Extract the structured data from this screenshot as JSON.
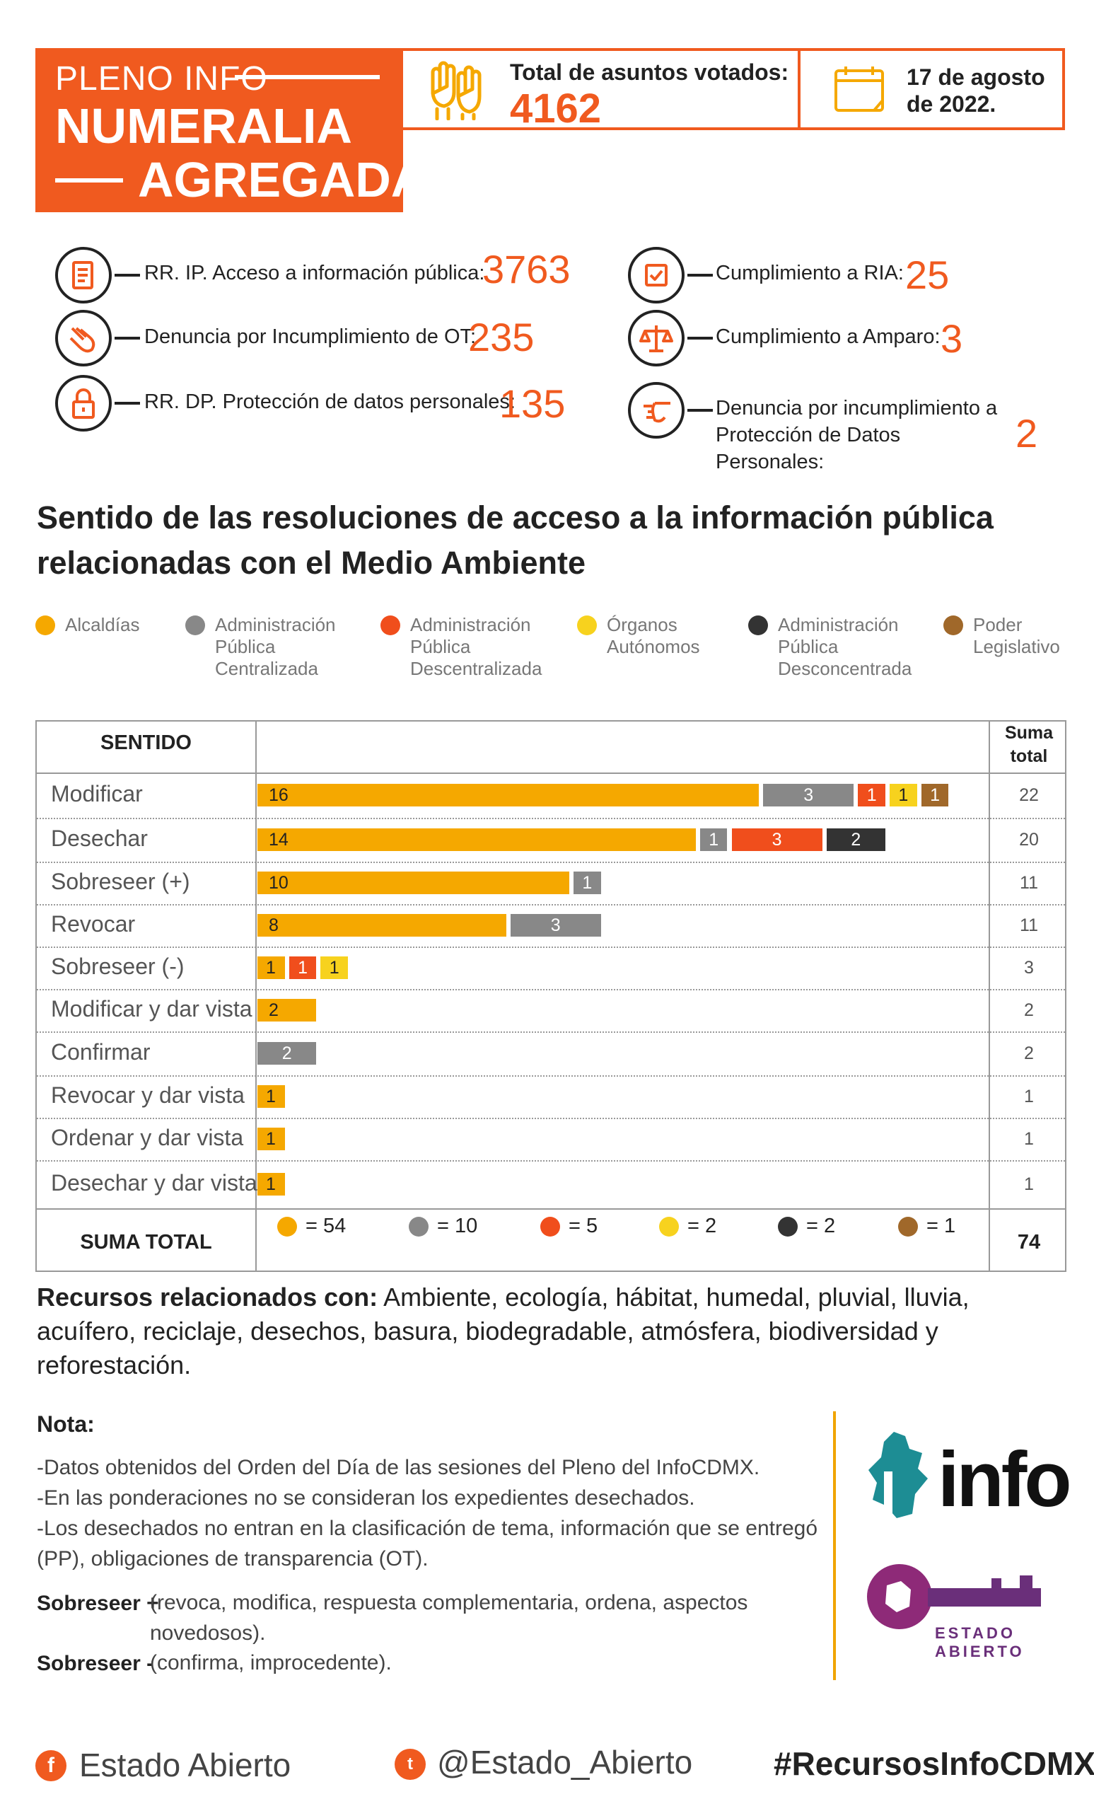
{
  "header": {
    "pleno": "PLENO INFO",
    "title1": "NUMERALIA",
    "title2": "AGREGADA",
    "total_label": "Total de asuntos votados:",
    "total_value": "4162",
    "date_text": "17 de agosto de 2022."
  },
  "stats": [
    {
      "label": "RR. IP.  Acceso a información pública:",
      "value": "3763",
      "icon": "document-icon"
    },
    {
      "label": "Denuncia por Incumplimiento de OT:",
      "value": "235",
      "icon": "pointing-hand-icon"
    },
    {
      "label": "RR. DP. Protección de datos personales:",
      "value": "135",
      "icon": "padlock-icon"
    },
    {
      "label": "Cumplimiento a RIA:",
      "value": "25",
      "icon": "checkbox-icon"
    },
    {
      "label": "Cumplimiento a Amparo:",
      "value": "3",
      "icon": "scales-icon"
    },
    {
      "label": "Denuncia por incumplimiento a Protección de Datos Personales:",
      "value": "2",
      "icon": "pointing-hand-right-icon"
    }
  ],
  "section_title": "Sentido de las resoluciones de acceso a la información pública relacionadas con el Medio Ambiente",
  "legend": [
    {
      "name": "Alcaldías",
      "color": "#f5a800"
    },
    {
      "name": "Administración Pública Centralizada",
      "color": "#888888"
    },
    {
      "name": "Administración Pública Descentralizada",
      "color": "#f04e1c"
    },
    {
      "name": "Órganos Autónomos",
      "color": "#f7d21e"
    },
    {
      "name": "Administración Pública Desconcentrada",
      "color": "#333333"
    },
    {
      "name": "Poder Legislativo",
      "color": "#a0682a"
    }
  ],
  "table": {
    "col_sentido": "SENTIDO",
    "col_suma": "Suma total",
    "suma_total_label": "SUMA TOTAL",
    "grand_total": "74"
  },
  "chart_data": {
    "type": "bar",
    "orientation": "horizontal",
    "stacked": true,
    "categories": [
      "Modificar",
      "Desechar",
      "Sobreseer (+)",
      "Revocar",
      "Sobreseer (-)",
      "Modificar y dar vista",
      "Confirmar",
      "Revocar y dar vista",
      "Ordenar y dar vista",
      "Desechar y dar vista"
    ],
    "series": [
      {
        "name": "Alcaldías",
        "color": "#f5a800",
        "values": [
          16,
          14,
          10,
          8,
          1,
          2,
          0,
          1,
          1,
          1
        ]
      },
      {
        "name": "Administración Pública Centralizada",
        "color": "#888888",
        "values": [
          3,
          1,
          1,
          3,
          0,
          0,
          2,
          0,
          0,
          0
        ]
      },
      {
        "name": "Administración Pública Descentralizada",
        "color": "#f04e1c",
        "values": [
          1,
          3,
          0,
          0,
          1,
          0,
          0,
          0,
          0,
          0
        ]
      },
      {
        "name": "Órganos Autónomos",
        "color": "#f7d21e",
        "values": [
          1,
          0,
          0,
          0,
          1,
          0,
          0,
          0,
          0,
          0
        ]
      },
      {
        "name": "Administración Pública Desconcentrada",
        "color": "#333333",
        "values": [
          0,
          2,
          0,
          0,
          0,
          0,
          0,
          0,
          0,
          0
        ]
      },
      {
        "name": "Poder Legislativo",
        "color": "#a0682a",
        "values": [
          1,
          0,
          0,
          0,
          0,
          0,
          0,
          0,
          0,
          0
        ]
      }
    ],
    "row_totals": [
      22,
      20,
      11,
      11,
      3,
      2,
      2,
      1,
      1,
      1
    ],
    "series_totals": [
      54,
      10,
      5,
      2,
      2,
      1
    ]
  },
  "related": {
    "label": "Recursos relacionados con:",
    "text": " Ambiente, ecología, hábitat, humedal, pluvial, lluvia, acuífero, reciclaje, desechos, basura, biodegradable, atmósfera, biodiversidad y reforestación."
  },
  "nota": {
    "title": "Nota:",
    "lines": [
      "-Datos obtenidos del Orden del Día de las sesiones del Pleno del InfoCDMX.",
      "-En las ponderaciones no se consideran los expedientes desechados.",
      "-Los desechados no entran en la clasificación de tema, información que se entregó",
      "(PP), obligaciones de transparencia (OT)."
    ],
    "sob_plus_label": "Sobreseer +",
    "sob_plus_text": "(revoca, modifica, respuesta complementaria, ordena, aspectos novedosos).",
    "sob_minus_label": "Sobreseer -",
    "sob_minus_text": "(confirma, improcedente)."
  },
  "logos": {
    "info": "info",
    "estado_abierto": "ESTADO ABIERTO"
  },
  "footer": {
    "facebook": "Estado Abierto",
    "twitter": "@Estado_Abierto",
    "hashtag": "#RecursosInfoCDMX"
  }
}
